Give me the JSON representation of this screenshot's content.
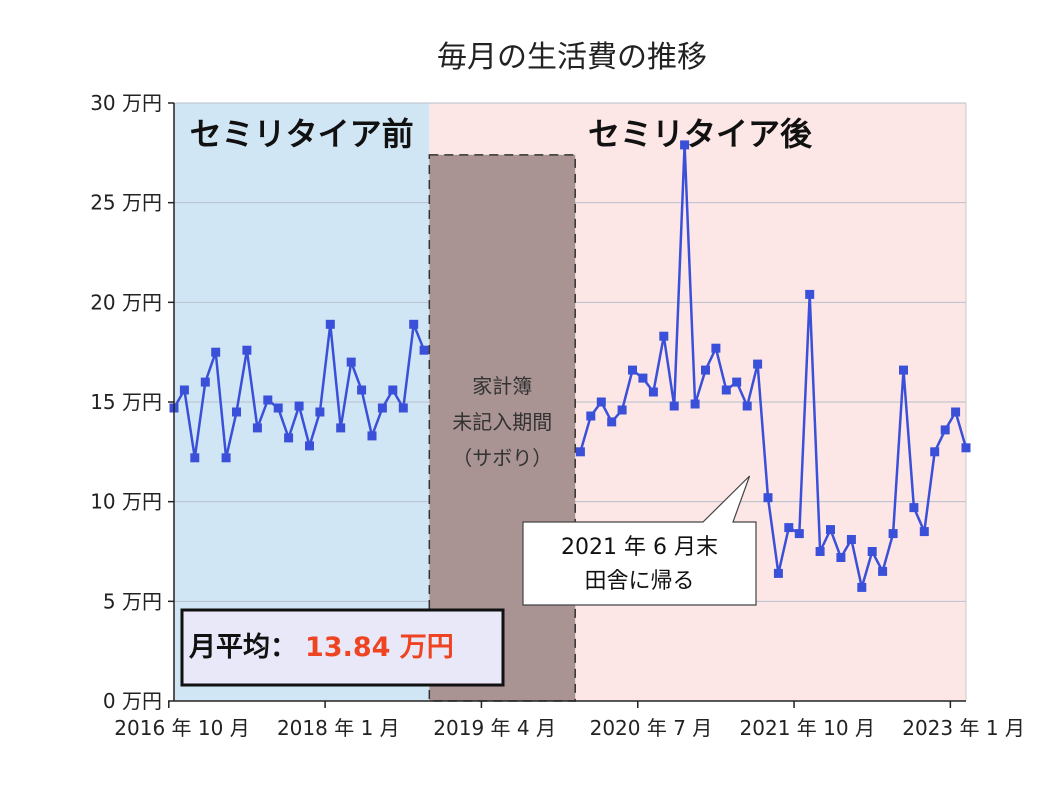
{
  "chart_data": {
    "type": "line",
    "title": "毎月の生活費の推移",
    "ylim": [
      0,
      30
    ],
    "ytick_values": [
      0,
      5,
      10,
      15,
      20,
      25,
      30
    ],
    "ytick_labels": [
      "0 万円",
      "5 万円",
      "10 万円",
      "15 万円",
      "20 万円",
      "25 万円",
      "30 万円"
    ],
    "month_count": 77,
    "xtick_labels": [
      {
        "label": "2016 年 10 月",
        "month": 0
      },
      {
        "label": "2018 年 1 月",
        "month": 15
      },
      {
        "label": "2019 年 4 月",
        "month": 30
      },
      {
        "label": "2020 年 7 月",
        "month": 45
      },
      {
        "label": "2021 年 10 月",
        "month": 60
      },
      {
        "label": "2023 年 1 月",
        "month": 75
      }
    ],
    "series": [
      {
        "name": "セミリタイア前",
        "start_month": 0,
        "values": [
          14.7,
          15.6,
          12.2,
          16.0,
          17.5,
          12.2,
          14.5,
          17.6,
          13.7,
          15.1,
          14.7,
          13.2,
          14.8,
          12.8,
          14.5,
          18.9,
          13.7,
          17.0,
          15.6,
          13.3,
          14.7,
          15.6,
          14.7,
          18.9,
          17.6
        ]
      },
      {
        "name": "セミリタイア後",
        "start_month": 39,
        "values": [
          12.5,
          14.3,
          15.0,
          14.0,
          14.6,
          16.6,
          16.2,
          15.5,
          18.3,
          14.8,
          27.9,
          14.9,
          16.6,
          17.7,
          15.6,
          16.0,
          14.8,
          16.9,
          10.2,
          6.4,
          8.7,
          8.4,
          20.4,
          7.5,
          8.6,
          7.2,
          8.1,
          5.7,
          7.5,
          6.5,
          8.4,
          16.6,
          9.7,
          8.5,
          12.5,
          13.6,
          14.5,
          12.7
        ]
      }
    ],
    "regions": [
      {
        "label": "セミリタイア前",
        "start_month": 0,
        "end_month": 25,
        "color": "#d1e6f4"
      },
      {
        "label": "セミリタイア後",
        "start_month": 25,
        "end_month": 77,
        "color": "#fce6e6"
      }
    ],
    "gap": {
      "lines": [
        "家計簿",
        "未記入期間",
        "（サボり）"
      ],
      "start_month": 24.5,
      "end_month": 38.5,
      "top_value": 27.4,
      "color": "#a99393"
    },
    "annotation": {
      "lines": [
        "2021 年 6 月末",
        "田舎に帰る"
      ],
      "target_month": 56
    },
    "average": {
      "label": "月平均：",
      "value": "13.84 万円",
      "value_color": "#ee4422"
    },
    "line_color": "#3a50d9",
    "grid": true
  }
}
